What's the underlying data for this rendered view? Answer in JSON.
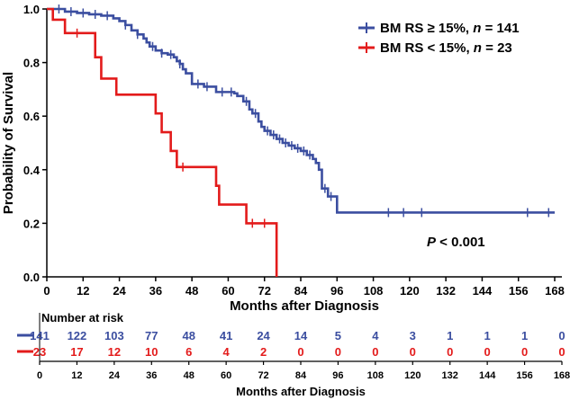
{
  "chart_data": {
    "type": "line",
    "subtype": "kaplan-meier",
    "xlabel": "Months after Diagnosis",
    "ylabel": "Probability of Survival",
    "xlim": [
      0,
      168
    ],
    "ylim": [
      0,
      1
    ],
    "x_ticks": [
      "0",
      "12",
      "24",
      "36",
      "48",
      "60",
      "72",
      "84",
      "96",
      "108",
      "120",
      "132",
      "144",
      "156",
      "168"
    ],
    "y_ticks": [
      "0.0",
      "0.2",
      "0.4",
      "0.6",
      "0.8",
      "1.0"
    ],
    "annotation": {
      "p_label": "P",
      "p_rest": " < 0.001"
    },
    "series": [
      {
        "name": "BM RS ≥ 15%, n = 141",
        "legend_main": "BM RS ≥ 15%, ",
        "legend_n": "n",
        "legend_count": " = 141",
        "color": "#3b4ea0",
        "steps": [
          [
            0,
            1.0
          ],
          [
            6,
            0.99
          ],
          [
            10,
            0.985
          ],
          [
            14,
            0.98
          ],
          [
            18,
            0.975
          ],
          [
            22,
            0.965
          ],
          [
            24,
            0.955
          ],
          [
            26,
            0.94
          ],
          [
            28,
            0.92
          ],
          [
            30,
            0.905
          ],
          [
            32,
            0.89
          ],
          [
            33,
            0.875
          ],
          [
            34,
            0.86
          ],
          [
            36,
            0.845
          ],
          [
            38,
            0.835
          ],
          [
            40,
            0.83
          ],
          [
            42,
            0.82
          ],
          [
            43,
            0.805
          ],
          [
            44,
            0.795
          ],
          [
            45,
            0.775
          ],
          [
            46,
            0.76
          ],
          [
            48,
            0.72
          ],
          [
            50,
            0.72
          ],
          [
            52,
            0.71
          ],
          [
            54,
            0.71
          ],
          [
            56,
            0.69
          ],
          [
            60,
            0.69
          ],
          [
            62,
            0.685
          ],
          [
            63,
            0.675
          ],
          [
            65,
            0.655
          ],
          [
            67,
            0.625
          ],
          [
            68,
            0.61
          ],
          [
            70,
            0.58
          ],
          [
            71,
            0.56
          ],
          [
            72,
            0.545
          ],
          [
            74,
            0.53
          ],
          [
            76,
            0.515
          ],
          [
            78,
            0.5
          ],
          [
            80,
            0.49
          ],
          [
            82,
            0.48
          ],
          [
            84,
            0.47
          ],
          [
            86,
            0.455
          ],
          [
            88,
            0.44
          ],
          [
            89,
            0.425
          ],
          [
            90,
            0.4
          ],
          [
            91,
            0.33
          ],
          [
            93,
            0.3
          ],
          [
            96,
            0.24
          ],
          [
            168,
            0.24
          ]
        ],
        "censors": [
          [
            4,
            1.0
          ],
          [
            8,
            0.99
          ],
          [
            12,
            0.985
          ],
          [
            16,
            0.98
          ],
          [
            20,
            0.975
          ],
          [
            26,
            0.94
          ],
          [
            30,
            0.905
          ],
          [
            35,
            0.86
          ],
          [
            38,
            0.835
          ],
          [
            41,
            0.83
          ],
          [
            44,
            0.795
          ],
          [
            50,
            0.72
          ],
          [
            53,
            0.71
          ],
          [
            58,
            0.69
          ],
          [
            61,
            0.69
          ],
          [
            66,
            0.655
          ],
          [
            69,
            0.61
          ],
          [
            73,
            0.545
          ],
          [
            75,
            0.53
          ],
          [
            77,
            0.515
          ],
          [
            79,
            0.5
          ],
          [
            81,
            0.49
          ],
          [
            83,
            0.48
          ],
          [
            85,
            0.47
          ],
          [
            87,
            0.455
          ],
          [
            92,
            0.33
          ],
          [
            94,
            0.3
          ],
          [
            113,
            0.24
          ],
          [
            118,
            0.24
          ],
          [
            124,
            0.24
          ],
          [
            159,
            0.24
          ],
          [
            166,
            0.24
          ]
        ]
      },
      {
        "name": "BM RS < 15%, n = 23",
        "legend_main": "BM RS < 15%, ",
        "legend_n": "n",
        "legend_count": " = 23",
        "color": "#e31b1b",
        "steps": [
          [
            0,
            1.0
          ],
          [
            2,
            0.96
          ],
          [
            6,
            0.91
          ],
          [
            16,
            0.82
          ],
          [
            18,
            0.74
          ],
          [
            23,
            0.68
          ],
          [
            36,
            0.61
          ],
          [
            38,
            0.54
          ],
          [
            41,
            0.47
          ],
          [
            43,
            0.41
          ],
          [
            56,
            0.34
          ],
          [
            57,
            0.27
          ],
          [
            66,
            0.2
          ],
          [
            76,
            0.2
          ],
          [
            76,
            0.0
          ]
        ],
        "censors": [
          [
            10,
            0.91
          ],
          [
            45,
            0.41
          ],
          [
            68,
            0.2
          ],
          [
            72,
            0.2
          ]
        ]
      }
    ],
    "risk_table": {
      "title": "Number at risk",
      "times": [
        "0",
        "12",
        "24",
        "36",
        "48",
        "60",
        "72",
        "84",
        "96",
        "108",
        "120",
        "132",
        "144",
        "156",
        "168"
      ],
      "xlabel": "Months after Diagnosis",
      "rows": [
        {
          "color": "#3b4ea0",
          "values": [
            "141",
            "122",
            "103",
            "77",
            "48",
            "41",
            "24",
            "14",
            "5",
            "4",
            "3",
            "1",
            "1",
            "1",
            "0"
          ]
        },
        {
          "color": "#e31b1b",
          "values": [
            "23",
            "17",
            "12",
            "10",
            "6",
            "4",
            "2",
            "0",
            "0",
            "0",
            "0",
            "0",
            "0",
            "0",
            "0"
          ]
        }
      ]
    }
  }
}
